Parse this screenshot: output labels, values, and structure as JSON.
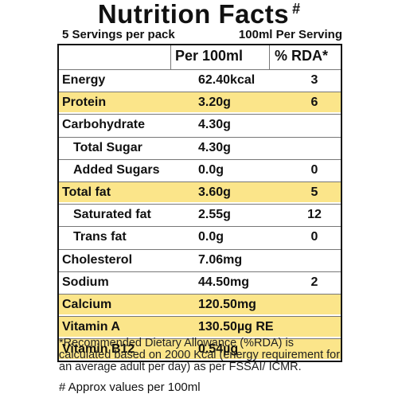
{
  "title": "Nutrition Facts",
  "title_mark": "#",
  "servings_per_pack": "5 Servings per pack",
  "serving_size": "100ml Per Serving",
  "columns": {
    "per": "Per 100ml",
    "rda": "% RDA*"
  },
  "rows": [
    {
      "name": "Energy",
      "value": "62.40kcal",
      "rda": "3",
      "highlight": false,
      "indent": false
    },
    {
      "name": "Protein",
      "value": "3.20g",
      "rda": "6",
      "highlight": true,
      "indent": false
    },
    {
      "name": "Carbohydrate",
      "value": "4.30g",
      "rda": "",
      "highlight": false,
      "indent": false
    },
    {
      "name": "Total Sugar",
      "value": "4.30g",
      "rda": "",
      "highlight": false,
      "indent": true
    },
    {
      "name": "Added Sugars",
      "value": "0.0g",
      "rda": "0",
      "highlight": false,
      "indent": true
    },
    {
      "name": "Total fat",
      "value": "3.60g",
      "rda": "5",
      "highlight": true,
      "indent": false
    },
    {
      "name": "Saturated fat",
      "value": "2.55g",
      "rda": "12",
      "highlight": false,
      "indent": true
    },
    {
      "name": "Trans fat",
      "value": "0.0g",
      "rda": "0",
      "highlight": false,
      "indent": true
    },
    {
      "name": "Cholesterol",
      "value": "7.06mg",
      "rda": "",
      "highlight": false,
      "indent": false
    },
    {
      "name": "Sodium",
      "value": "44.50mg",
      "rda": "2",
      "highlight": false,
      "indent": false
    },
    {
      "name": "Calcium",
      "value": "120.50mg",
      "rda": "",
      "highlight": true,
      "indent": false
    },
    {
      "name": "Vitamin A",
      "value": "130.50µg RE",
      "rda": "",
      "highlight": true,
      "indent": false
    },
    {
      "name": "Vitamin B12",
      "value": "0.54µg",
      "rda": "",
      "highlight": true,
      "indent": false
    }
  ],
  "footnote": "*Recommended Dietary Allowance (%RDA) is calculated based on 2000 Kcal (energy requirement for an average adult per day) as per FSSAI/ ICMR.",
  "approx_note": "# Approx values per 100ml",
  "colors": {
    "highlight": "#fbe58a",
    "text": "#111111"
  }
}
